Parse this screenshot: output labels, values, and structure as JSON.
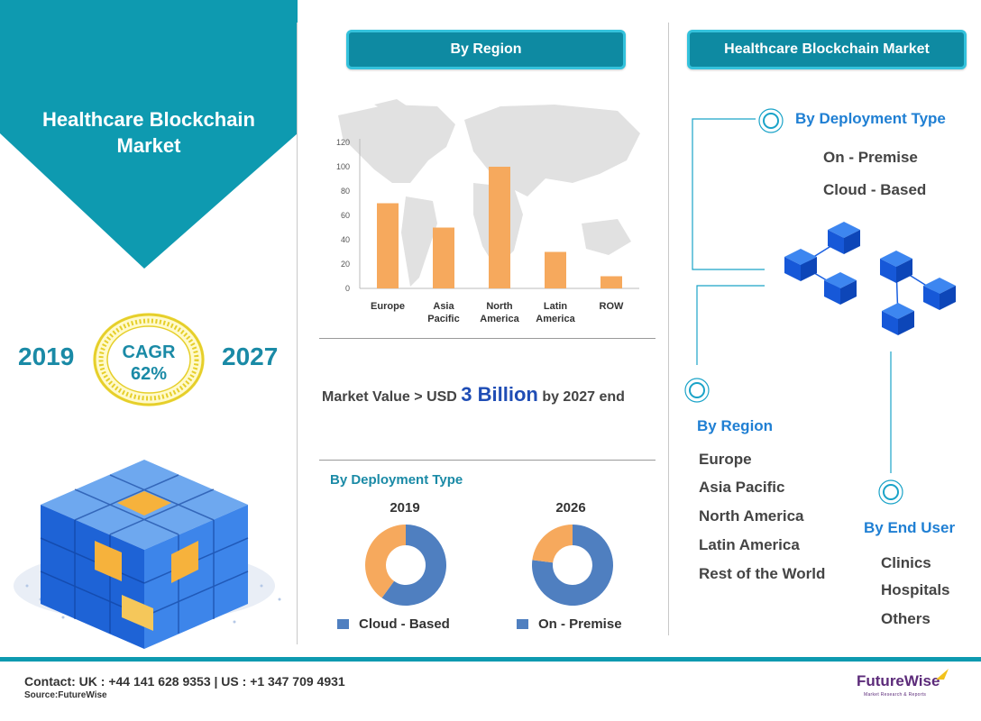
{
  "banner": {
    "title_line1": "Healthcare Blockchain",
    "title_line2": "Market"
  },
  "cagr": {
    "start_year": "2019",
    "end_year": "2027",
    "label": "CAGR",
    "value": "62%"
  },
  "pills": {
    "region": "By Region",
    "market": "Healthcare Blockchain Market"
  },
  "market_value": {
    "prefix": "Market Value > USD",
    "amount": "3 Billion",
    "suffix": "by 2027 end"
  },
  "deployment": {
    "heading": "By Deployment Type",
    "legend_cloud": "Cloud - Based",
    "legend_premise": "On - Premise"
  },
  "right_panel": {
    "deployment_heading": "By Deployment Type",
    "deployment_items": [
      "On - Premise",
      "Cloud - Based"
    ],
    "region_heading": "By Region",
    "region_items": [
      "Europe",
      "Asia Pacific",
      "North America",
      "Latin America",
      "Rest of the World"
    ],
    "enduser_heading": "By End User",
    "enduser_items": [
      "Clinics",
      "Hospitals",
      "Others"
    ]
  },
  "footer": {
    "contact": "Contact:   UK : +44 141 628 9353  |  US :  +1 347 709 4931",
    "source": "Source:FutureWise",
    "logo_name": "FutureWise",
    "logo_tagline": "Market Research & Reports"
  },
  "colors": {
    "teal": "#0e9ab0",
    "bar_orange": "#f6a95d",
    "donut_blue": "#4f7fc0",
    "donut_orange": "#f6a95d"
  },
  "chart_data": [
    {
      "type": "bar",
      "categories": [
        [
          "Europe"
        ],
        [
          "Asia",
          "Pacific"
        ],
        [
          "North",
          "America"
        ],
        [
          "Latin",
          "America"
        ],
        [
          "ROW"
        ]
      ],
      "values": [
        70,
        50,
        100,
        30,
        10
      ],
      "yticks": [
        0,
        20,
        40,
        60,
        80,
        100,
        120
      ],
      "ylim": [
        0,
        120
      ]
    },
    {
      "type": "pie",
      "title": "2019",
      "labels": [
        "On - Premise",
        "Cloud - Based"
      ],
      "values": [
        60,
        40
      ]
    },
    {
      "type": "pie",
      "title": "2026",
      "labels": [
        "On - Premise",
        "Cloud - Based"
      ],
      "values": [
        77,
        23
      ]
    }
  ]
}
